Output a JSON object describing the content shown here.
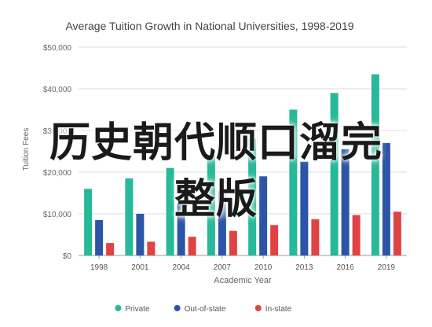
{
  "chart_data": {
    "type": "bar",
    "title": "Average Tuition Growth in National Universities, 1998-2019",
    "xlabel": "Academic Year",
    "ylabel": "Tuition Fees",
    "categories": [
      "1998",
      "2001",
      "2004",
      "2007",
      "2010",
      "2013",
      "2016",
      "2019"
    ],
    "ylim": [
      0,
      50000
    ],
    "yticks": [
      {
        "value": 0,
        "label": "$0"
      },
      {
        "value": 10000,
        "label": "$10,000"
      },
      {
        "value": 20000,
        "label": "$20,000"
      },
      {
        "value": 30000,
        "label": "$30,000"
      },
      {
        "value": 40000,
        "label": "$40,000"
      },
      {
        "value": 50000,
        "label": "$50,000"
      }
    ],
    "grid": true,
    "legend_position": "bottom",
    "series": [
      {
        "name": "Private",
        "color": "#26b99a",
        "values": [
          16000,
          18500,
          21000,
          24000,
          28000,
          35000,
          39000,
          43500
        ]
      },
      {
        "name": "Out-of-state",
        "color": "#2c55a8",
        "values": [
          8500,
          10000,
          12500,
          15500,
          19000,
          22500,
          25500,
          27000
        ]
      },
      {
        "name": "In-state",
        "color": "#e04343",
        "values": [
          3000,
          3300,
          4500,
          5900,
          7300,
          8700,
          9700,
          10500
        ]
      }
    ]
  },
  "overlay": {
    "line1": "历史朝代顺口溜完",
    "line2": "整版"
  }
}
